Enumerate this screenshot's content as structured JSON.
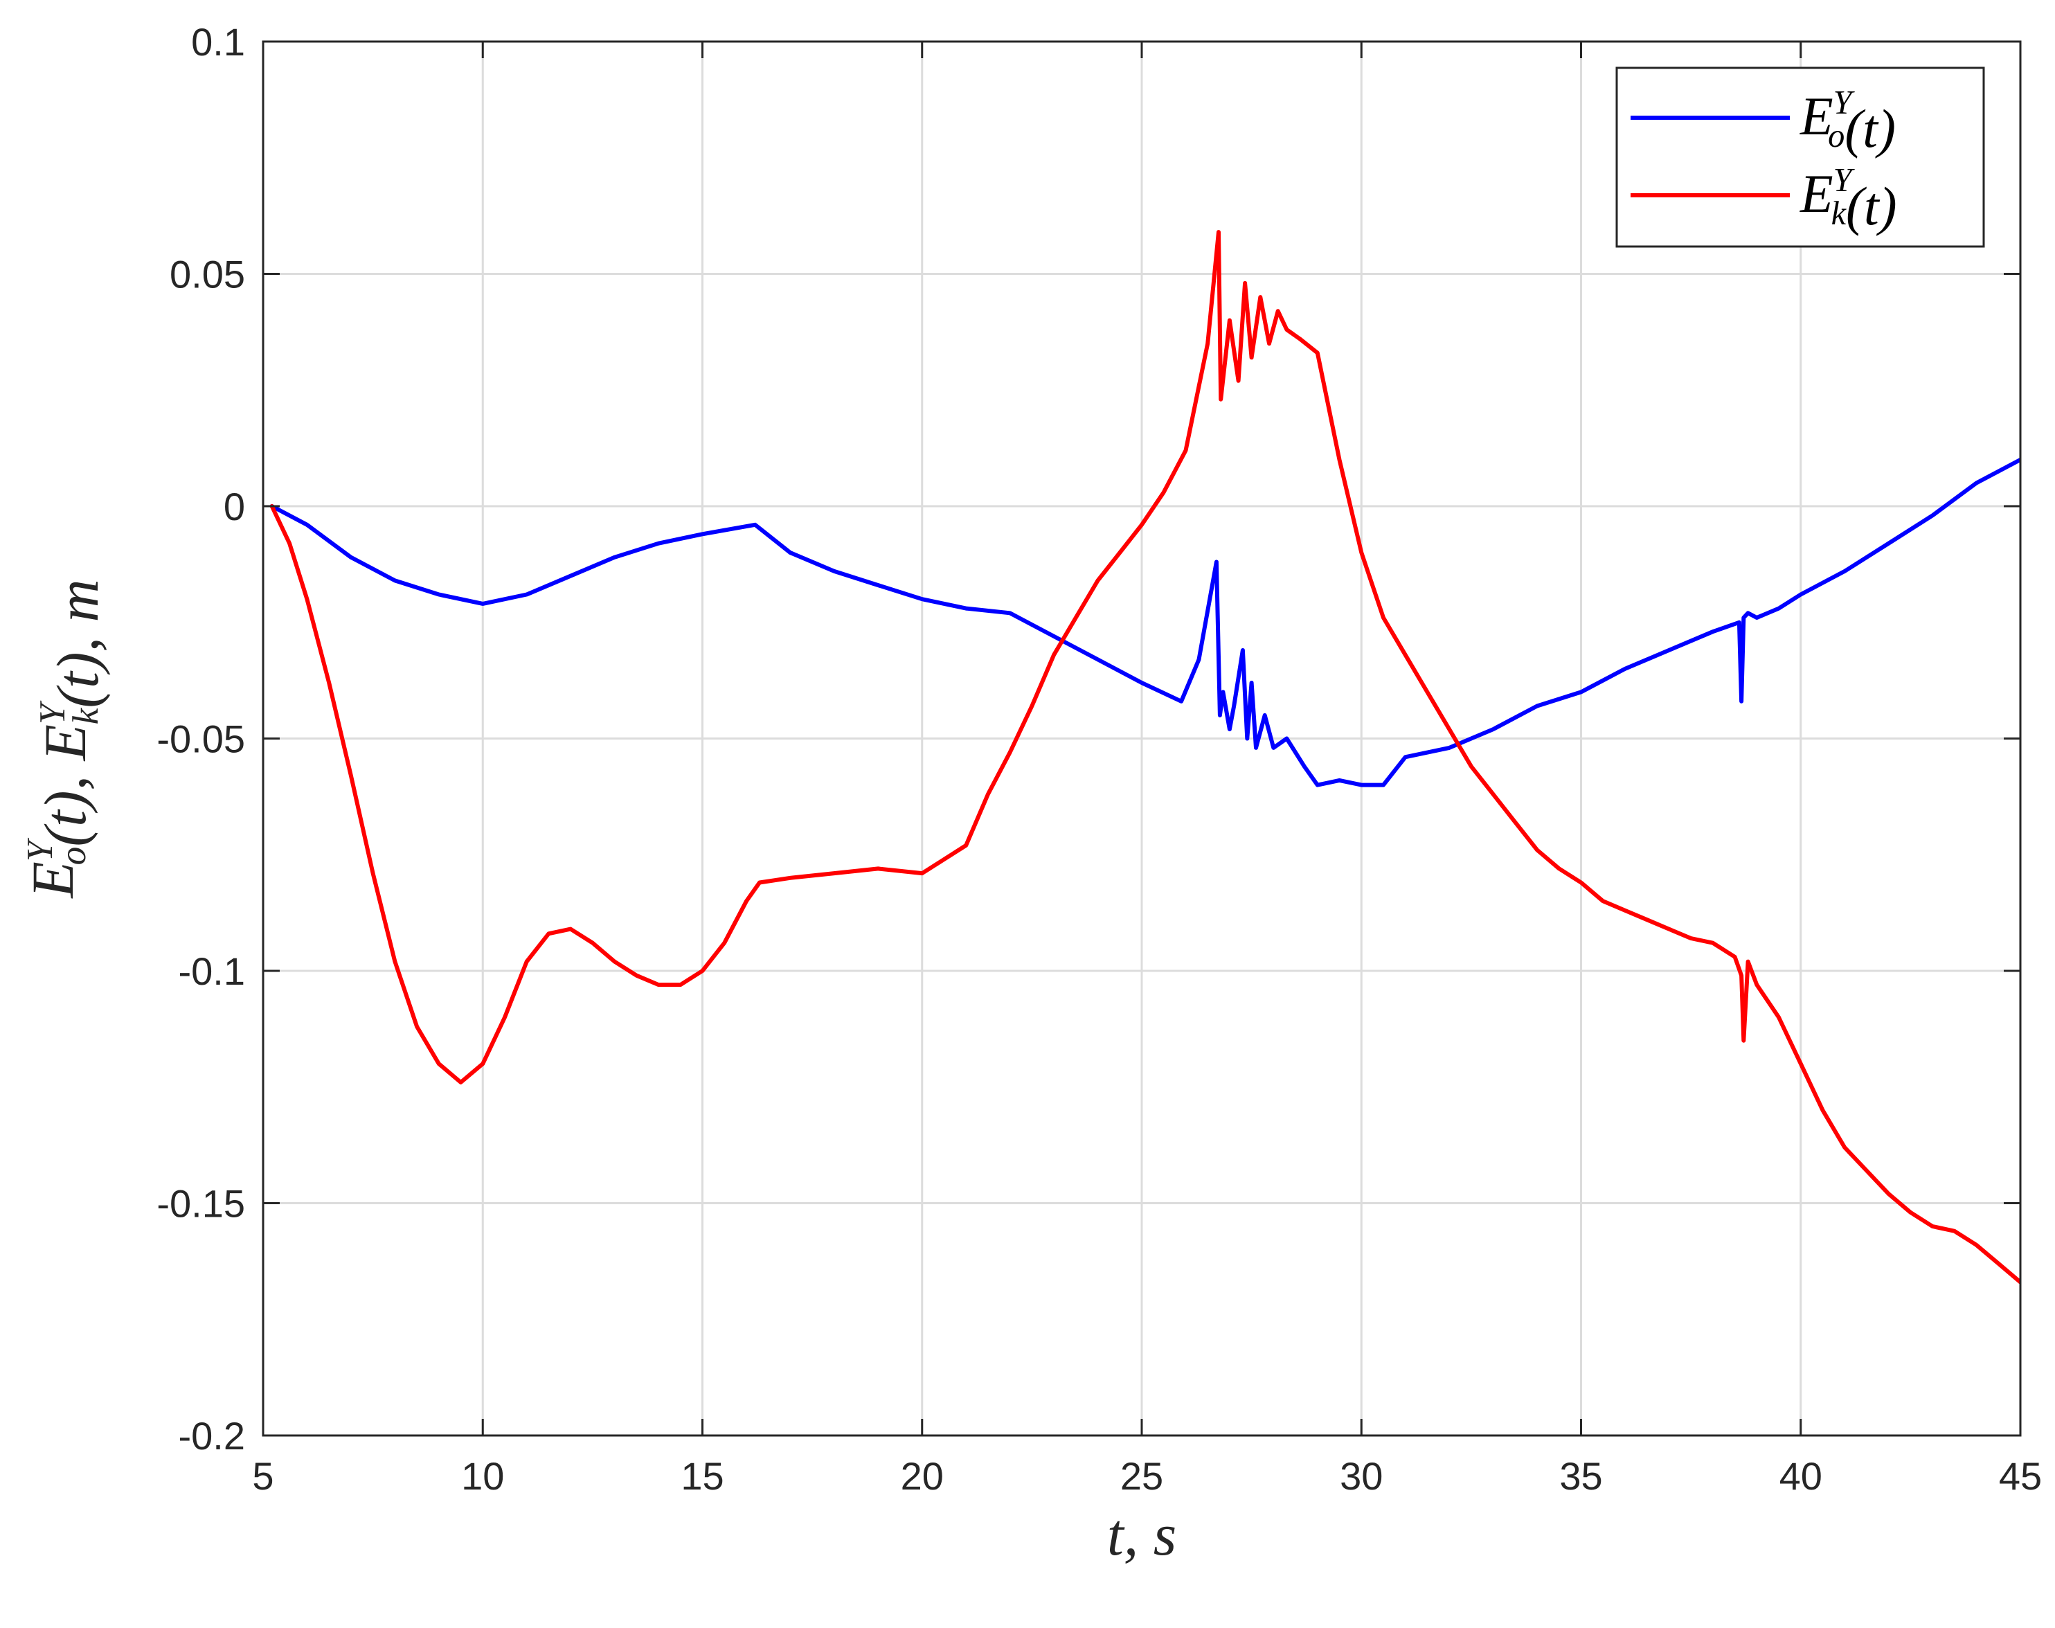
{
  "chart_data": {
    "type": "line",
    "title": "",
    "xlabel": "t, s",
    "ylabel": "E_o^Y(t), E_k^Y(t), m",
    "xlim": [
      5,
      45
    ],
    "ylim": [
      -0.2,
      0.1
    ],
    "xticks": [
      5,
      10,
      15,
      20,
      25,
      30,
      35,
      40,
      45
    ],
    "yticks": [
      -0.2,
      -0.15,
      -0.1,
      -0.05,
      0,
      0.05,
      0.1
    ],
    "xtick_labels": [
      "5",
      "10",
      "15",
      "20",
      "25",
      "30",
      "35",
      "40",
      "45"
    ],
    "ytick_labels": [
      "-0.2",
      "-0.15",
      "-0.1",
      "-0.05",
      "0",
      "0.05",
      "0.1"
    ],
    "grid": true,
    "legend_position": "top-right",
    "series": [
      {
        "name": "E_o^Y(t)",
        "color": "#0000ff",
        "x": [
          5.2,
          6,
          7,
          8,
          9,
          10,
          11,
          12,
          13,
          14,
          15,
          16.2,
          17,
          18,
          19,
          20,
          21,
          22,
          23,
          24,
          25,
          25.9,
          26.3,
          26.7,
          26.78,
          26.85,
          27.0,
          27.1,
          27.3,
          27.4,
          27.5,
          27.6,
          27.8,
          28.0,
          28.3,
          28.7,
          29.0,
          29.5,
          30.0,
          30.5,
          31.0,
          32.0,
          33.0,
          34.0,
          35.0,
          36.0,
          37.0,
          38.0,
          38.6,
          38.65,
          38.7,
          38.8,
          39.0,
          39.5,
          40.0,
          41.0,
          42.0,
          43.0,
          44.0,
          45.0
        ],
        "y": [
          0.0,
          -0.004,
          -0.011,
          -0.016,
          -0.019,
          -0.021,
          -0.019,
          -0.015,
          -0.011,
          -0.008,
          -0.006,
          -0.004,
          -0.01,
          -0.014,
          -0.017,
          -0.02,
          -0.022,
          -0.023,
          -0.028,
          -0.033,
          -0.038,
          -0.042,
          -0.033,
          -0.012,
          -0.045,
          -0.04,
          -0.048,
          -0.043,
          -0.031,
          -0.05,
          -0.038,
          -0.052,
          -0.045,
          -0.052,
          -0.05,
          -0.056,
          -0.06,
          -0.059,
          -0.06,
          -0.06,
          -0.054,
          -0.052,
          -0.048,
          -0.043,
          -0.04,
          -0.035,
          -0.031,
          -0.027,
          -0.025,
          -0.042,
          -0.024,
          -0.023,
          -0.024,
          -0.022,
          -0.019,
          -0.014,
          -0.008,
          -0.002,
          0.005,
          0.01
        ]
      },
      {
        "name": "E_k^Y(t)",
        "color": "#ff0000",
        "x": [
          5.2,
          5.6,
          6.0,
          6.5,
          7.0,
          7.5,
          8.0,
          8.5,
          9.0,
          9.5,
          10.0,
          10.5,
          11.0,
          11.5,
          12.0,
          12.5,
          13.0,
          13.5,
          14.0,
          14.5,
          15.0,
          15.5,
          16.0,
          16.3,
          17.0,
          18.0,
          19.0,
          20.0,
          20.5,
          21.0,
          21.5,
          22.0,
          22.5,
          23.0,
          23.5,
          24.0,
          24.5,
          25.0,
          25.5,
          26.0,
          26.5,
          26.75,
          26.8,
          27.0,
          27.2,
          27.35,
          27.5,
          27.7,
          27.9,
          28.1,
          28.3,
          28.6,
          29.0,
          29.5,
          30.0,
          30.5,
          31.0,
          31.5,
          32.0,
          32.5,
          33.0,
          33.5,
          34.0,
          34.5,
          35.0,
          35.5,
          36.0,
          36.5,
          37.0,
          37.5,
          38.0,
          38.5,
          38.65,
          38.7,
          38.8,
          39.0,
          39.5,
          40.0,
          40.5,
          41.0,
          41.5,
          42.0,
          42.5,
          43.0,
          43.5,
          44.0,
          44.5,
          45.0
        ],
        "y": [
          0.0,
          -0.008,
          -0.02,
          -0.038,
          -0.058,
          -0.079,
          -0.098,
          -0.112,
          -0.12,
          -0.124,
          -0.12,
          -0.11,
          -0.098,
          -0.092,
          -0.091,
          -0.094,
          -0.098,
          -0.101,
          -0.103,
          -0.103,
          -0.1,
          -0.094,
          -0.085,
          -0.081,
          -0.08,
          -0.079,
          -0.078,
          -0.079,
          -0.076,
          -0.073,
          -0.062,
          -0.053,
          -0.043,
          -0.032,
          -0.024,
          -0.016,
          -0.01,
          -0.004,
          0.003,
          0.012,
          0.035,
          0.059,
          0.023,
          0.04,
          0.027,
          0.048,
          0.032,
          0.045,
          0.035,
          0.042,
          0.038,
          0.036,
          0.033,
          0.01,
          -0.01,
          -0.024,
          -0.032,
          -0.04,
          -0.048,
          -0.056,
          -0.062,
          -0.068,
          -0.074,
          -0.078,
          -0.081,
          -0.085,
          -0.087,
          -0.089,
          -0.091,
          -0.093,
          -0.094,
          -0.097,
          -0.101,
          -0.115,
          -0.098,
          -0.103,
          -0.11,
          -0.12,
          -0.13,
          -0.138,
          -0.143,
          -0.148,
          -0.152,
          -0.155,
          -0.156,
          -0.159,
          -0.163,
          -0.167
        ]
      }
    ]
  }
}
